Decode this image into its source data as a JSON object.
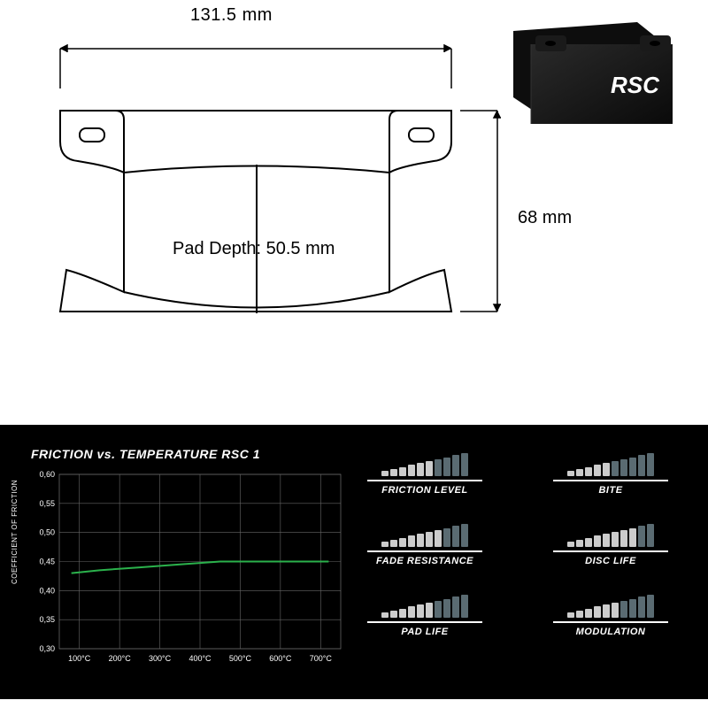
{
  "dimensions": {
    "width_label": "131.5 mm",
    "height_label": "68 mm",
    "depth_label": "Pad Depth: 50.5 mm"
  },
  "product": {
    "brand": "RSC",
    "body_color": "#1a1a1a",
    "highlight_color": "#333333"
  },
  "diagram": {
    "stroke": "#000000",
    "stroke_width": 1.8,
    "background": "#ffffff"
  },
  "chart": {
    "title": "FRICTION vs. TEMPERATURE RSC 1",
    "y_axis_label": "COEFFICIENT OF FRICTION",
    "background": "#000000",
    "grid_color": "#666666",
    "line_color": "#2bb24c",
    "line_width": 2,
    "x_ticks": [
      "100°C",
      "200°C",
      "300°C",
      "400°C",
      "500°C",
      "600°C",
      "700°C"
    ],
    "y_ticks": [
      "0,30",
      "0,35",
      "0,40",
      "0,45",
      "0,50",
      "0,55",
      "0,60"
    ],
    "y_min": 0.3,
    "y_max": 0.6,
    "x_min": 50,
    "x_max": 750,
    "tick_fontsize": 9,
    "data_points": [
      {
        "x": 80,
        "y": 0.43
      },
      {
        "x": 150,
        "y": 0.435
      },
      {
        "x": 250,
        "y": 0.44
      },
      {
        "x": 350,
        "y": 0.445
      },
      {
        "x": 450,
        "y": 0.45
      },
      {
        "x": 550,
        "y": 0.45
      },
      {
        "x": 650,
        "y": 0.45
      },
      {
        "x": 720,
        "y": 0.45
      }
    ]
  },
  "ratings": {
    "bar_count": 10,
    "filled_color": "#5a6b72",
    "empty_color": "#cccccc",
    "items": [
      {
        "label": "FRICTION LEVEL",
        "value": 6
      },
      {
        "label": "BITE",
        "value": 5
      },
      {
        "label": "FADE RESISTANCE",
        "value": 7
      },
      {
        "label": "DISC LIFE",
        "value": 8
      },
      {
        "label": "PAD LIFE",
        "value": 6
      },
      {
        "label": "MODULATION",
        "value": 6
      }
    ]
  }
}
